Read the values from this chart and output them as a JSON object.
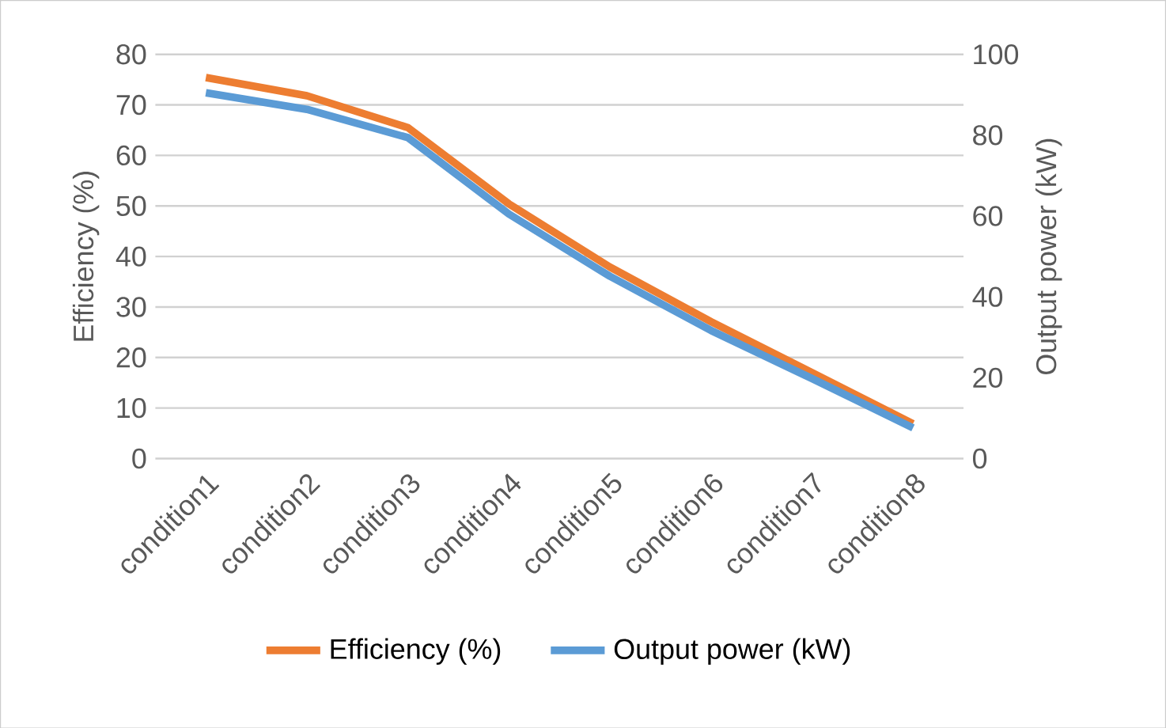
{
  "chart_data": {
    "type": "line",
    "ylabel": "Efficiency (%)",
    "y2label": "Output power (kW)",
    "categories": [
      "condition1",
      "condition2",
      "condition3",
      "condition4",
      "condition5",
      "condition6",
      "condition7",
      "condition8"
    ],
    "series": [
      {
        "name": "Efficiency (%)",
        "color": "#ed7d31",
        "values": [
          75.4,
          71.8,
          65.5,
          50.4,
          37.9,
          27.1,
          17.0,
          6.9
        ]
      },
      {
        "name": "Output power (kW)",
        "color": "#5b9bd5",
        "axis": "y2",
        "values": [
          90.5,
          86.4,
          79.4,
          60.5,
          45.1,
          31.7,
          19.8,
          7.6
        ]
      }
    ],
    "ylim": [
      0,
      80
    ],
    "yticks": [
      0,
      10,
      20,
      30,
      40,
      50,
      60,
      70,
      80
    ],
    "y2lim": [
      0,
      100
    ],
    "y2ticks": [
      0,
      20,
      40,
      60,
      80,
      100
    ],
    "grid": "y",
    "legend": "bottom",
    "marker": "none",
    "line_style": "solid"
  }
}
